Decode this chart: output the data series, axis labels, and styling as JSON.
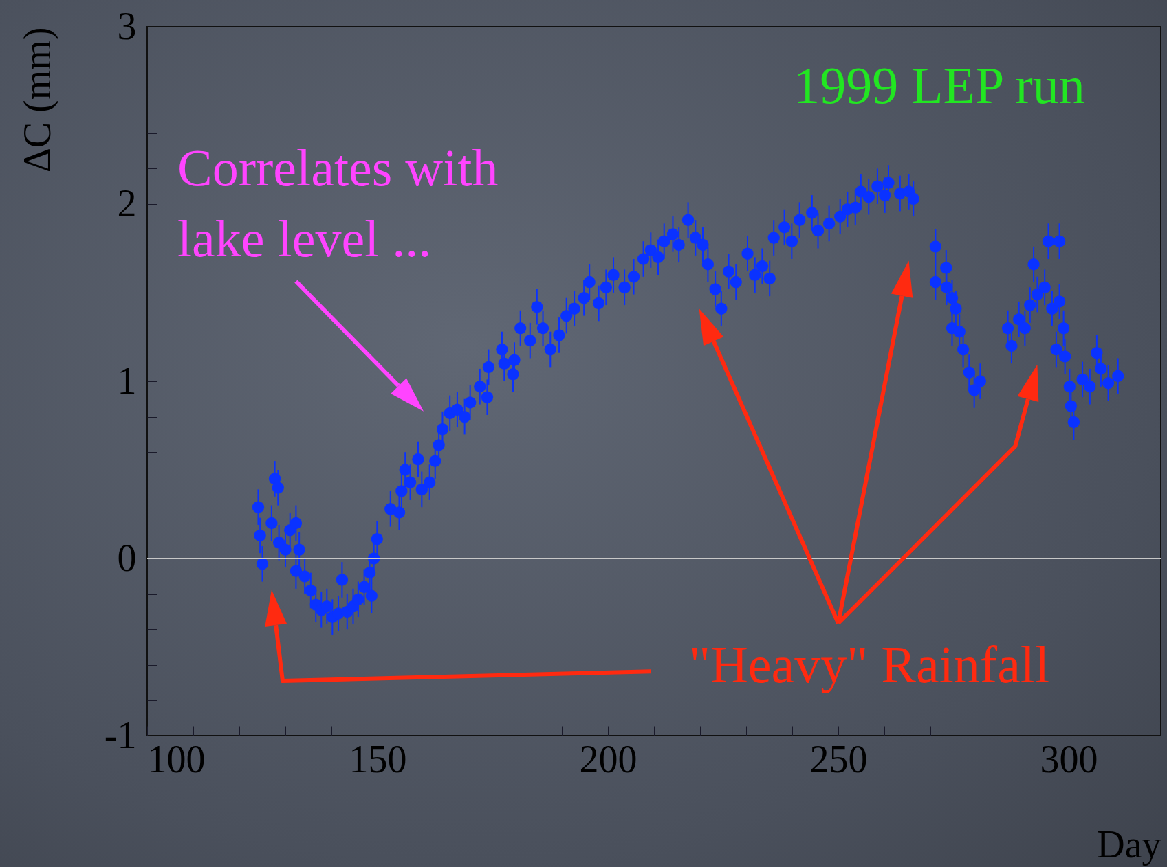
{
  "chart_data": {
    "type": "scatter",
    "xlabel": "Day",
    "ylabel": "ΔC (mm)",
    "annotations": [
      "1999 LEP run",
      "Correlates with\nlake level ...",
      "\"Heavy\" Rainfall"
    ],
    "x": [
      124.1,
      124.5,
      125,
      127,
      127.7,
      128.4,
      128.6,
      130,
      131,
      132.3,
      133,
      132.3,
      134.2,
      135.5,
      136.6,
      137.8,
      139,
      140.2,
      141.5,
      142.3,
      143.4,
      144.7,
      145.8,
      147.1,
      148.3,
      148.7,
      149.2,
      149.9,
      152.8,
      154.7,
      155.2,
      156,
      157.1,
      158.8,
      159.6,
      161.3,
      162.5,
      163.3,
      164.1,
      165.7,
      167.3,
      168.9,
      170.1,
      172.2,
      173.8,
      174.1,
      177,
      177.5,
      179.4,
      179.7,
      181,
      183.1,
      184.6,
      185.9,
      187.5,
      189.4,
      191,
      192.7,
      194.8,
      196,
      198,
      199.6,
      201.2,
      203.6,
      205.6,
      207.7,
      209.3,
      210.9,
      212.2,
      214.1,
      215.4,
      217.4,
      219,
      220.6,
      221.7,
      223.3,
      224.6,
      226.2,
      227.8,
      230.3,
      231.9,
      233.5,
      235.1,
      236,
      238.3,
      239.9,
      241.6,
      244.3,
      245.6,
      248,
      250.4,
      252,
      253.7,
      254.9,
      256.6,
      258.5,
      260.1,
      260.9,
      263.4,
      265.3,
      266.3,
      271.1,
      271.1,
      273.4,
      273.5,
      274.7,
      274.7,
      275.5,
      276.3,
      277.1,
      278.4,
      279.5,
      280.8,
      286.8,
      287.6,
      289.2,
      290.5,
      291.6,
      292.4,
      293.2,
      294.8,
      295.6,
      296.4,
      298,
      298,
      297.3,
      298.9,
      299.2,
      300.2,
      300.5,
      301.1,
      303,
      304.6,
      306.1,
      307,
      308.6,
      310.7
    ],
    "series": [
      {
        "color": "#0a32ff",
        "values": [
          0.29,
          0.13,
          -0.03,
          0.2,
          0.45,
          0.4,
          0.09,
          0.05,
          0.16,
          0.2,
          0.05,
          -0.07,
          -0.1,
          -0.18,
          -0.26,
          -0.29,
          -0.27,
          -0.33,
          -0.31,
          -0.12,
          -0.3,
          -0.27,
          -0.23,
          -0.16,
          -0.08,
          -0.21,
          0,
          0.11,
          0.28,
          0.26,
          0.38,
          0.5,
          0.43,
          0.56,
          0.39,
          0.43,
          0.55,
          0.64,
          0.73,
          0.82,
          0.84,
          0.8,
          0.88,
          0.97,
          0.91,
          1.08,
          1.18,
          1.1,
          1.04,
          1.12,
          1.3,
          1.23,
          1.42,
          1.3,
          1.18,
          1.26,
          1.37,
          1.41,
          1.47,
          1.56,
          1.44,
          1.53,
          1.6,
          1.53,
          1.59,
          1.69,
          1.74,
          1.7,
          1.79,
          1.83,
          1.77,
          1.91,
          1.81,
          1.77,
          1.66,
          1.52,
          1.41,
          1.62,
          1.56,
          1.72,
          1.6,
          1.65,
          1.58,
          1.81,
          1.87,
          1.79,
          1.91,
          1.95,
          1.85,
          1.89,
          1.93,
          1.97,
          1.98,
          2.07,
          2.04,
          2.1,
          2.05,
          2.12,
          2.06,
          2.07,
          2.03,
          1.56,
          1.76,
          1.64,
          1.53,
          1.47,
          1.3,
          1.41,
          1.28,
          1.18,
          1.05,
          0.95,
          1.0,
          1.3,
          1.2,
          1.35,
          1.3,
          1.43,
          1.66,
          1.49,
          1.53,
          1.79,
          1.41,
          1.79,
          1.45,
          1.18,
          1.3,
          1.14,
          0.97,
          0.86,
          0.77,
          1.01,
          0.97,
          1.16,
          1.07,
          0.99,
          1.03
        ],
        "errors": [
          0.1,
          0.1,
          0.1,
          0.1,
          0.1,
          0.1,
          0.1,
          0.1,
          0.1,
          0.1,
          0.1,
          0.1,
          0.1,
          0.1,
          0.1,
          0.1,
          0.1,
          0.1,
          0.1,
          0.1,
          0.1,
          0.1,
          0.1,
          0.1,
          0.1,
          0.1,
          0.1,
          0.1,
          0.1,
          0.1,
          0.1,
          0.1,
          0.1,
          0.1,
          0.1,
          0.1,
          0.1,
          0.1,
          0.1,
          0.1,
          0.1,
          0.1,
          0.1,
          0.1,
          0.1,
          0.1,
          0.1,
          0.1,
          0.1,
          0.1,
          0.1,
          0.1,
          0.1,
          0.1,
          0.1,
          0.1,
          0.1,
          0.1,
          0.1,
          0.1,
          0.1,
          0.1,
          0.1,
          0.1,
          0.1,
          0.1,
          0.1,
          0.1,
          0.1,
          0.1,
          0.1,
          0.1,
          0.1,
          0.1,
          0.1,
          0.1,
          0.1,
          0.1,
          0.1,
          0.1,
          0.1,
          0.1,
          0.1,
          0.1,
          0.1,
          0.1,
          0.1,
          0.1,
          0.1,
          0.1,
          0.1,
          0.1,
          0.1,
          0.1,
          0.1,
          0.1,
          0.1,
          0.1,
          0.1,
          0.1,
          0.1,
          0.1,
          0.1,
          0.1,
          0.1,
          0.1,
          0.1,
          0.1,
          0.1,
          0.1,
          0.1,
          0.1,
          0.1,
          0.1,
          0.1,
          0.1,
          0.1,
          0.1,
          0.1,
          0.1,
          0.1,
          0.1,
          0.1,
          0.1,
          0.1,
          0.1,
          0.1,
          0.1,
          0.1,
          0.1,
          0.1,
          0.1,
          0.1,
          0.1,
          0.1,
          0.1,
          0.1
        ]
      }
    ],
    "xlim": [
      100,
      320
    ],
    "xticks": [
      100,
      {
        "value": 110,
        "label": null
      },
      {
        "value": 120,
        "label": null
      },
      {
        "value": 130,
        "label": null
      },
      {
        "value": 140,
        "label": null
      },
      150,
      {
        "value": 160,
        "label": null
      },
      {
        "value": 170,
        "label": null
      },
      {
        "value": 180,
        "label": null
      },
      {
        "value": 190,
        "label": null
      },
      200,
      {
        "value": 210,
        "label": null
      },
      {
        "value": 220,
        "label": null
      },
      {
        "value": 230,
        "label": null
      },
      {
        "value": 240,
        "label": null
      },
      250,
      {
        "value": 260,
        "label": null
      },
      {
        "value": 270,
        "label": null
      },
      {
        "value": 280,
        "label": null
      },
      {
        "value": 290,
        "label": null
      },
      300,
      {
        "value": 310,
        "label": null
      }
    ],
    "ylim": [
      -1,
      3
    ],
    "yticks": [
      -1,
      {
        "value": -0.8,
        "label": null
      },
      {
        "value": -0.6,
        "label": null
      },
      {
        "value": -0.4,
        "label": null
      },
      {
        "value": -0.2,
        "label": null
      },
      0,
      {
        "value": 0.2,
        "label": null
      },
      {
        "value": 0.4,
        "label": null
      },
      {
        "value": 0.6,
        "label": null
      },
      {
        "value": 0.8,
        "label": null
      },
      1,
      {
        "value": 1.2,
        "label": null
      },
      {
        "value": 1.4,
        "label": null
      },
      {
        "value": 1.6,
        "label": null
      },
      {
        "value": 1.8,
        "label": null
      },
      2,
      {
        "value": 2.2,
        "label": null
      },
      {
        "value": 2.4,
        "label": null
      },
      {
        "value": 2.6,
        "label": null
      },
      {
        "value": 2.8,
        "label": null
      },
      3
    ],
    "ref_lines": [
      {
        "axis": "y",
        "value": 0,
        "color": "#c8c8c8"
      }
    ],
    "marker": "circle",
    "grid": false
  }
}
